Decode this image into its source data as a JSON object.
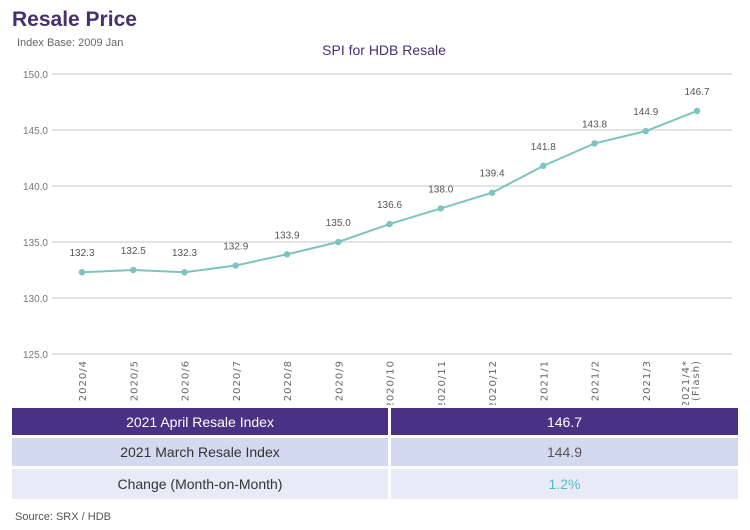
{
  "header": {
    "title": "Resale Price",
    "subtitle": "Index Base: 2009 Jan"
  },
  "chart_data": {
    "type": "line",
    "title": "SPI for HDB Resale",
    "categories": [
      "2020/4",
      "2020/5",
      "2020/6",
      "2020/7",
      "2020/8",
      "2020/9",
      "2020/10",
      "2020/11",
      "2020/12",
      "2021/1",
      "2021/2",
      "2021/3",
      "2021/4*\n(Flash)"
    ],
    "values": [
      132.3,
      132.5,
      132.3,
      132.9,
      133.9,
      135.0,
      136.6,
      138.0,
      139.4,
      141.8,
      143.8,
      144.9,
      146.7
    ],
    "data_labels": [
      "132.3",
      "132.5",
      "132.3",
      "132.9",
      "133.9",
      "135.0",
      "136.6",
      "138.0",
      "139.4",
      "141.8",
      "143.8",
      "144.9",
      "146.7"
    ],
    "yticks": [
      "125.0",
      "130.0",
      "135.0",
      "140.0",
      "145.0",
      "150.0"
    ],
    "ylim": [
      125,
      150
    ],
    "grid": true,
    "line_color": "#7cc4c0"
  },
  "table": {
    "rows": [
      {
        "label": "2021 April Resale Index",
        "value": "146.7"
      },
      {
        "label": "2021 March Resale Index",
        "value": "144.9"
      },
      {
        "label": "Change (Month-on-Month)",
        "value": "1.2%"
      }
    ],
    "colors": {
      "header": "#4a3184",
      "row2": "#d3d9f0",
      "row3": "#e8ebf7",
      "change": "#4fc0c0"
    }
  },
  "source": "Source: SRX / HDB"
}
